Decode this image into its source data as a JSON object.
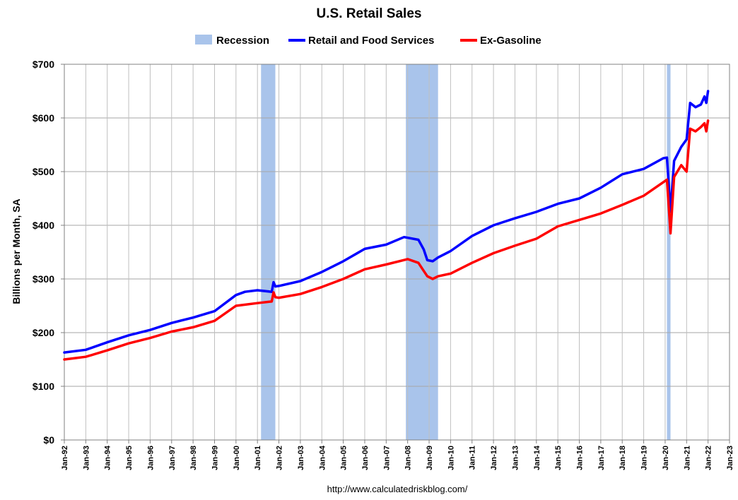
{
  "chart_data": {
    "type": "line",
    "title": "U.S. Retail Sales",
    "xlabel": "",
    "ylabel": "Billions per Month, SA",
    "source": "http://www.calculatedriskblog.com/",
    "legend": [
      "Recession",
      "Retail and Food Services",
      "Ex-Gasoline"
    ],
    "legend_position": "top-center",
    "grid": true,
    "ylim": [
      0,
      700
    ],
    "xlim": [
      "1992-01",
      "2023-01"
    ],
    "y_ticks": [
      0,
      100,
      200,
      300,
      400,
      500,
      600,
      700
    ],
    "y_tick_labels": [
      "$0",
      "$100",
      "$200",
      "$300",
      "$400",
      "$500",
      "$600",
      "$700"
    ],
    "x_tick_labels": [
      "Jan-92",
      "Jan-93",
      "Jan-94",
      "Jan-95",
      "Jan-96",
      "Jan-97",
      "Jan-98",
      "Jan-99",
      "Jan-00",
      "Jan-01",
      "Jan-02",
      "Jan-03",
      "Jan-04",
      "Jan-05",
      "Jan-06",
      "Jan-07",
      "Jan-08",
      "Jan-09",
      "Jan-10",
      "Jan-11",
      "Jan-12",
      "Jan-13",
      "Jan-14",
      "Jan-15",
      "Jan-16",
      "Jan-17",
      "Jan-18",
      "Jan-19",
      "Jan-20",
      "Jan-21",
      "Jan-22",
      "Jan-23"
    ],
    "recessions": [
      {
        "start": "2001-03",
        "end": "2001-11"
      },
      {
        "start": "2007-12",
        "end": "2009-06"
      },
      {
        "start": "2020-02",
        "end": "2020-04"
      }
    ],
    "colors": {
      "recession": "#a9c4eb",
      "retail": "#0000ff",
      "exgas": "#ff0000",
      "grid": "#a6a6a6"
    },
    "series": [
      {
        "name": "Retail and Food Services",
        "color": "#0000ff",
        "x": [
          "1992-01",
          "1993-01",
          "1994-01",
          "1995-01",
          "1996-01",
          "1997-01",
          "1998-01",
          "1999-01",
          "2000-01",
          "2000-06",
          "2001-01",
          "2001-09",
          "2001-10",
          "2001-11",
          "2002-01",
          "2003-01",
          "2004-01",
          "2005-01",
          "2006-01",
          "2007-01",
          "2007-11",
          "2008-07",
          "2008-10",
          "2008-12",
          "2009-03",
          "2009-06",
          "2010-01",
          "2011-01",
          "2012-01",
          "2013-01",
          "2014-01",
          "2015-01",
          "2016-01",
          "2017-01",
          "2018-01",
          "2019-01",
          "2019-12",
          "2020-02",
          "2020-04",
          "2020-06",
          "2020-10",
          "2021-01",
          "2021-03",
          "2021-06",
          "2021-09",
          "2021-11",
          "2021-12",
          "2022-01"
        ],
        "values": [
          163,
          168,
          182,
          195,
          205,
          218,
          228,
          240,
          270,
          276,
          279,
          276,
          294,
          286,
          287,
          296,
          313,
          333,
          356,
          364,
          378,
          373,
          355,
          335,
          333,
          340,
          352,
          380,
          400,
          413,
          425,
          440,
          450,
          470,
          495,
          505,
          525,
          526,
          425,
          520,
          546,
          560,
          628,
          620,
          625,
          640,
          628,
          650
        ]
      },
      {
        "name": "Ex-Gasoline",
        "color": "#ff0000",
        "x": [
          "1992-01",
          "1993-01",
          "1994-01",
          "1995-01",
          "1996-01",
          "1997-01",
          "1998-01",
          "1999-01",
          "2000-01",
          "2001-01",
          "2001-09",
          "2001-10",
          "2001-11",
          "2002-01",
          "2003-01",
          "2004-01",
          "2005-01",
          "2006-01",
          "2007-01",
          "2008-01",
          "2008-07",
          "2008-10",
          "2008-12",
          "2009-03",
          "2009-06",
          "2010-01",
          "2011-01",
          "2012-01",
          "2013-01",
          "2014-01",
          "2015-01",
          "2016-01",
          "2017-01",
          "2018-01",
          "2019-01",
          "2020-02",
          "2020-04",
          "2020-06",
          "2020-10",
          "2021-01",
          "2021-03",
          "2021-06",
          "2021-09",
          "2021-11",
          "2021-12",
          "2022-01"
        ],
        "values": [
          150,
          155,
          167,
          180,
          190,
          202,
          210,
          222,
          250,
          255,
          258,
          275,
          266,
          265,
          272,
          285,
          300,
          318,
          327,
          337,
          330,
          315,
          305,
          300,
          305,
          310,
          330,
          348,
          362,
          375,
          398,
          410,
          422,
          438,
          455,
          485,
          385,
          490,
          512,
          500,
          580,
          575,
          583,
          590,
          575,
          595
        ]
      }
    ]
  }
}
